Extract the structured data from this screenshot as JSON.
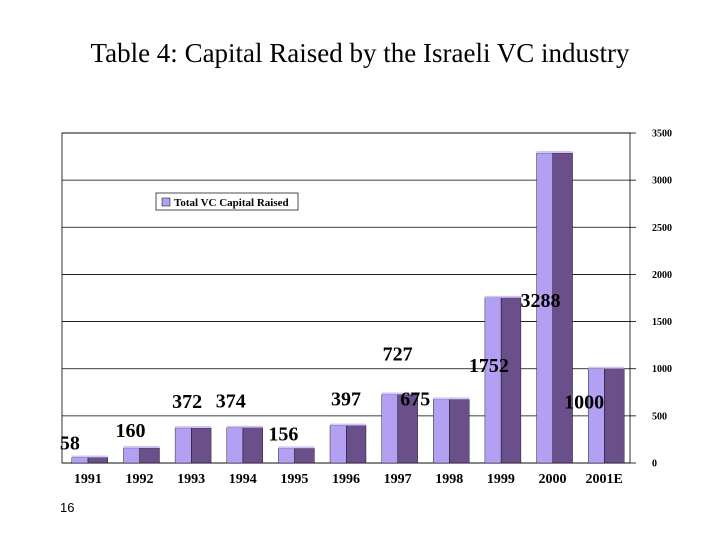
{
  "slide": {
    "title": "Table 4: Capital Raised by the Israeli VC industry",
    "page_number": "16"
  },
  "colors": {
    "bar_front": "#b4a0f2",
    "bar_side": "#6a4f8a",
    "bar_top": "#d3c7f7",
    "grid": "#000000"
  },
  "chart_data": {
    "type": "bar",
    "title": "Table 4: Capital Raised by the Israeli VC industry",
    "categories": [
      "1991",
      "1992",
      "1993",
      "1994",
      "1995",
      "1996",
      "1997",
      "1998",
      "1999",
      "2000",
      "2001E"
    ],
    "series": [
      {
        "name": "Total VC Capital Raised",
        "values": [
          58,
          160,
          372,
          374,
          156,
          397,
          727,
          675,
          1752,
          3288,
          1000
        ]
      }
    ],
    "data_labels": [
      "58",
      "160",
      "372",
      "374",
      "156",
      "397",
      "727",
      "675",
      "1752",
      "3288",
      "1000"
    ],
    "yticks": [
      "0",
      "500",
      "1000",
      "1500",
      "2000",
      "2500",
      "3000",
      "3500"
    ],
    "ylim": [
      0,
      3500
    ],
    "y_axis_side": "right",
    "grid": true,
    "legend_position": "top-left"
  }
}
